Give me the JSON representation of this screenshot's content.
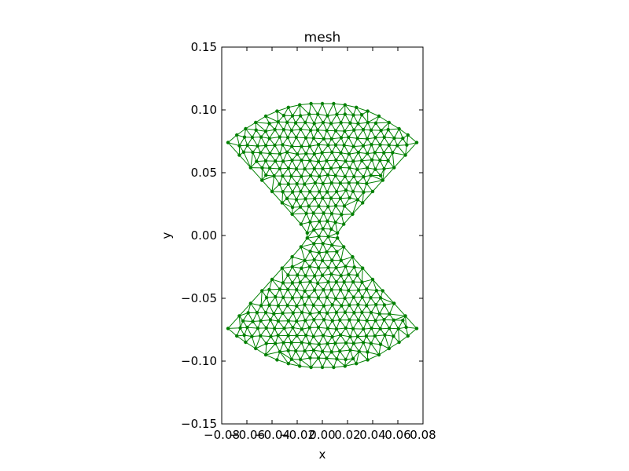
{
  "chart_data": {
    "type": "scatter",
    "title": "mesh",
    "xlabel": "x",
    "ylabel": "y",
    "xlim": [
      -0.08,
      0.08
    ],
    "ylim": [
      -0.15,
      0.15
    ],
    "xticks": [
      -0.08,
      -0.06,
      -0.04,
      -0.02,
      0.0,
      0.02,
      0.04,
      0.06,
      0.08
    ],
    "xtick_labels": [
      "−0.08",
      "−0.06",
      "−0.04",
      "−0.02",
      "0.00",
      "0.02",
      "0.04",
      "0.06",
      "0.08"
    ],
    "yticks": [
      -0.15,
      -0.1,
      -0.05,
      0.0,
      0.05,
      0.1,
      0.15
    ],
    "ytick_labels": [
      "−0.15",
      "−0.10",
      "−0.05",
      "0.00",
      "0.05",
      "0.10",
      "0.15"
    ],
    "grid": false,
    "mesh_color": "#008000",
    "boundary": [
      [
        -0.075,
        0.074
      ],
      [
        -0.068,
        0.08
      ],
      [
        -0.061,
        0.085
      ],
      [
        -0.053,
        0.09
      ],
      [
        -0.045,
        0.095
      ],
      [
        -0.036,
        0.099
      ],
      [
        -0.027,
        0.102
      ],
      [
        -0.018,
        0.104
      ],
      [
        -0.009,
        0.105
      ],
      [
        0.0,
        0.105
      ],
      [
        0.009,
        0.105
      ],
      [
        0.018,
        0.104
      ],
      [
        0.027,
        0.102
      ],
      [
        0.036,
        0.099
      ],
      [
        0.045,
        0.095
      ],
      [
        0.053,
        0.09
      ],
      [
        0.061,
        0.085
      ],
      [
        0.068,
        0.08
      ],
      [
        0.075,
        0.074
      ],
      [
        0.066,
        0.064
      ],
      [
        0.057,
        0.054
      ],
      [
        0.048,
        0.044
      ],
      [
        0.04,
        0.035
      ],
      [
        0.032,
        0.026
      ],
      [
        0.024,
        0.017
      ],
      [
        0.017,
        0.009
      ],
      [
        0.012,
        0.002
      ],
      [
        0.012,
        -0.002
      ],
      [
        0.017,
        -0.009
      ],
      [
        0.024,
        -0.017
      ],
      [
        0.032,
        -0.026
      ],
      [
        0.04,
        -0.035
      ],
      [
        0.048,
        -0.044
      ],
      [
        0.057,
        -0.054
      ],
      [
        0.066,
        -0.064
      ],
      [
        0.075,
        -0.074
      ],
      [
        0.068,
        -0.08
      ],
      [
        0.061,
        -0.085
      ],
      [
        0.053,
        -0.09
      ],
      [
        0.045,
        -0.095
      ],
      [
        0.036,
        -0.099
      ],
      [
        0.027,
        -0.102
      ],
      [
        0.018,
        -0.104
      ],
      [
        0.009,
        -0.105
      ],
      [
        0.0,
        -0.105
      ],
      [
        -0.009,
        -0.105
      ],
      [
        -0.018,
        -0.104
      ],
      [
        -0.027,
        -0.102
      ],
      [
        -0.036,
        -0.099
      ],
      [
        -0.045,
        -0.095
      ],
      [
        -0.053,
        -0.09
      ],
      [
        -0.061,
        -0.085
      ],
      [
        -0.068,
        -0.08
      ],
      [
        -0.075,
        -0.074
      ],
      [
        -0.066,
        -0.064
      ],
      [
        -0.057,
        -0.054
      ],
      [
        -0.048,
        -0.044
      ],
      [
        -0.04,
        -0.035
      ],
      [
        -0.032,
        -0.026
      ],
      [
        -0.024,
        -0.017
      ],
      [
        -0.017,
        -0.009
      ],
      [
        -0.012,
        -0.002
      ],
      [
        -0.012,
        0.002
      ],
      [
        -0.017,
        0.009
      ],
      [
        -0.024,
        0.017
      ],
      [
        -0.032,
        0.026
      ],
      [
        -0.04,
        0.035
      ],
      [
        -0.048,
        0.044
      ],
      [
        -0.057,
        0.054
      ],
      [
        -0.066,
        0.064
      ]
    ]
  }
}
